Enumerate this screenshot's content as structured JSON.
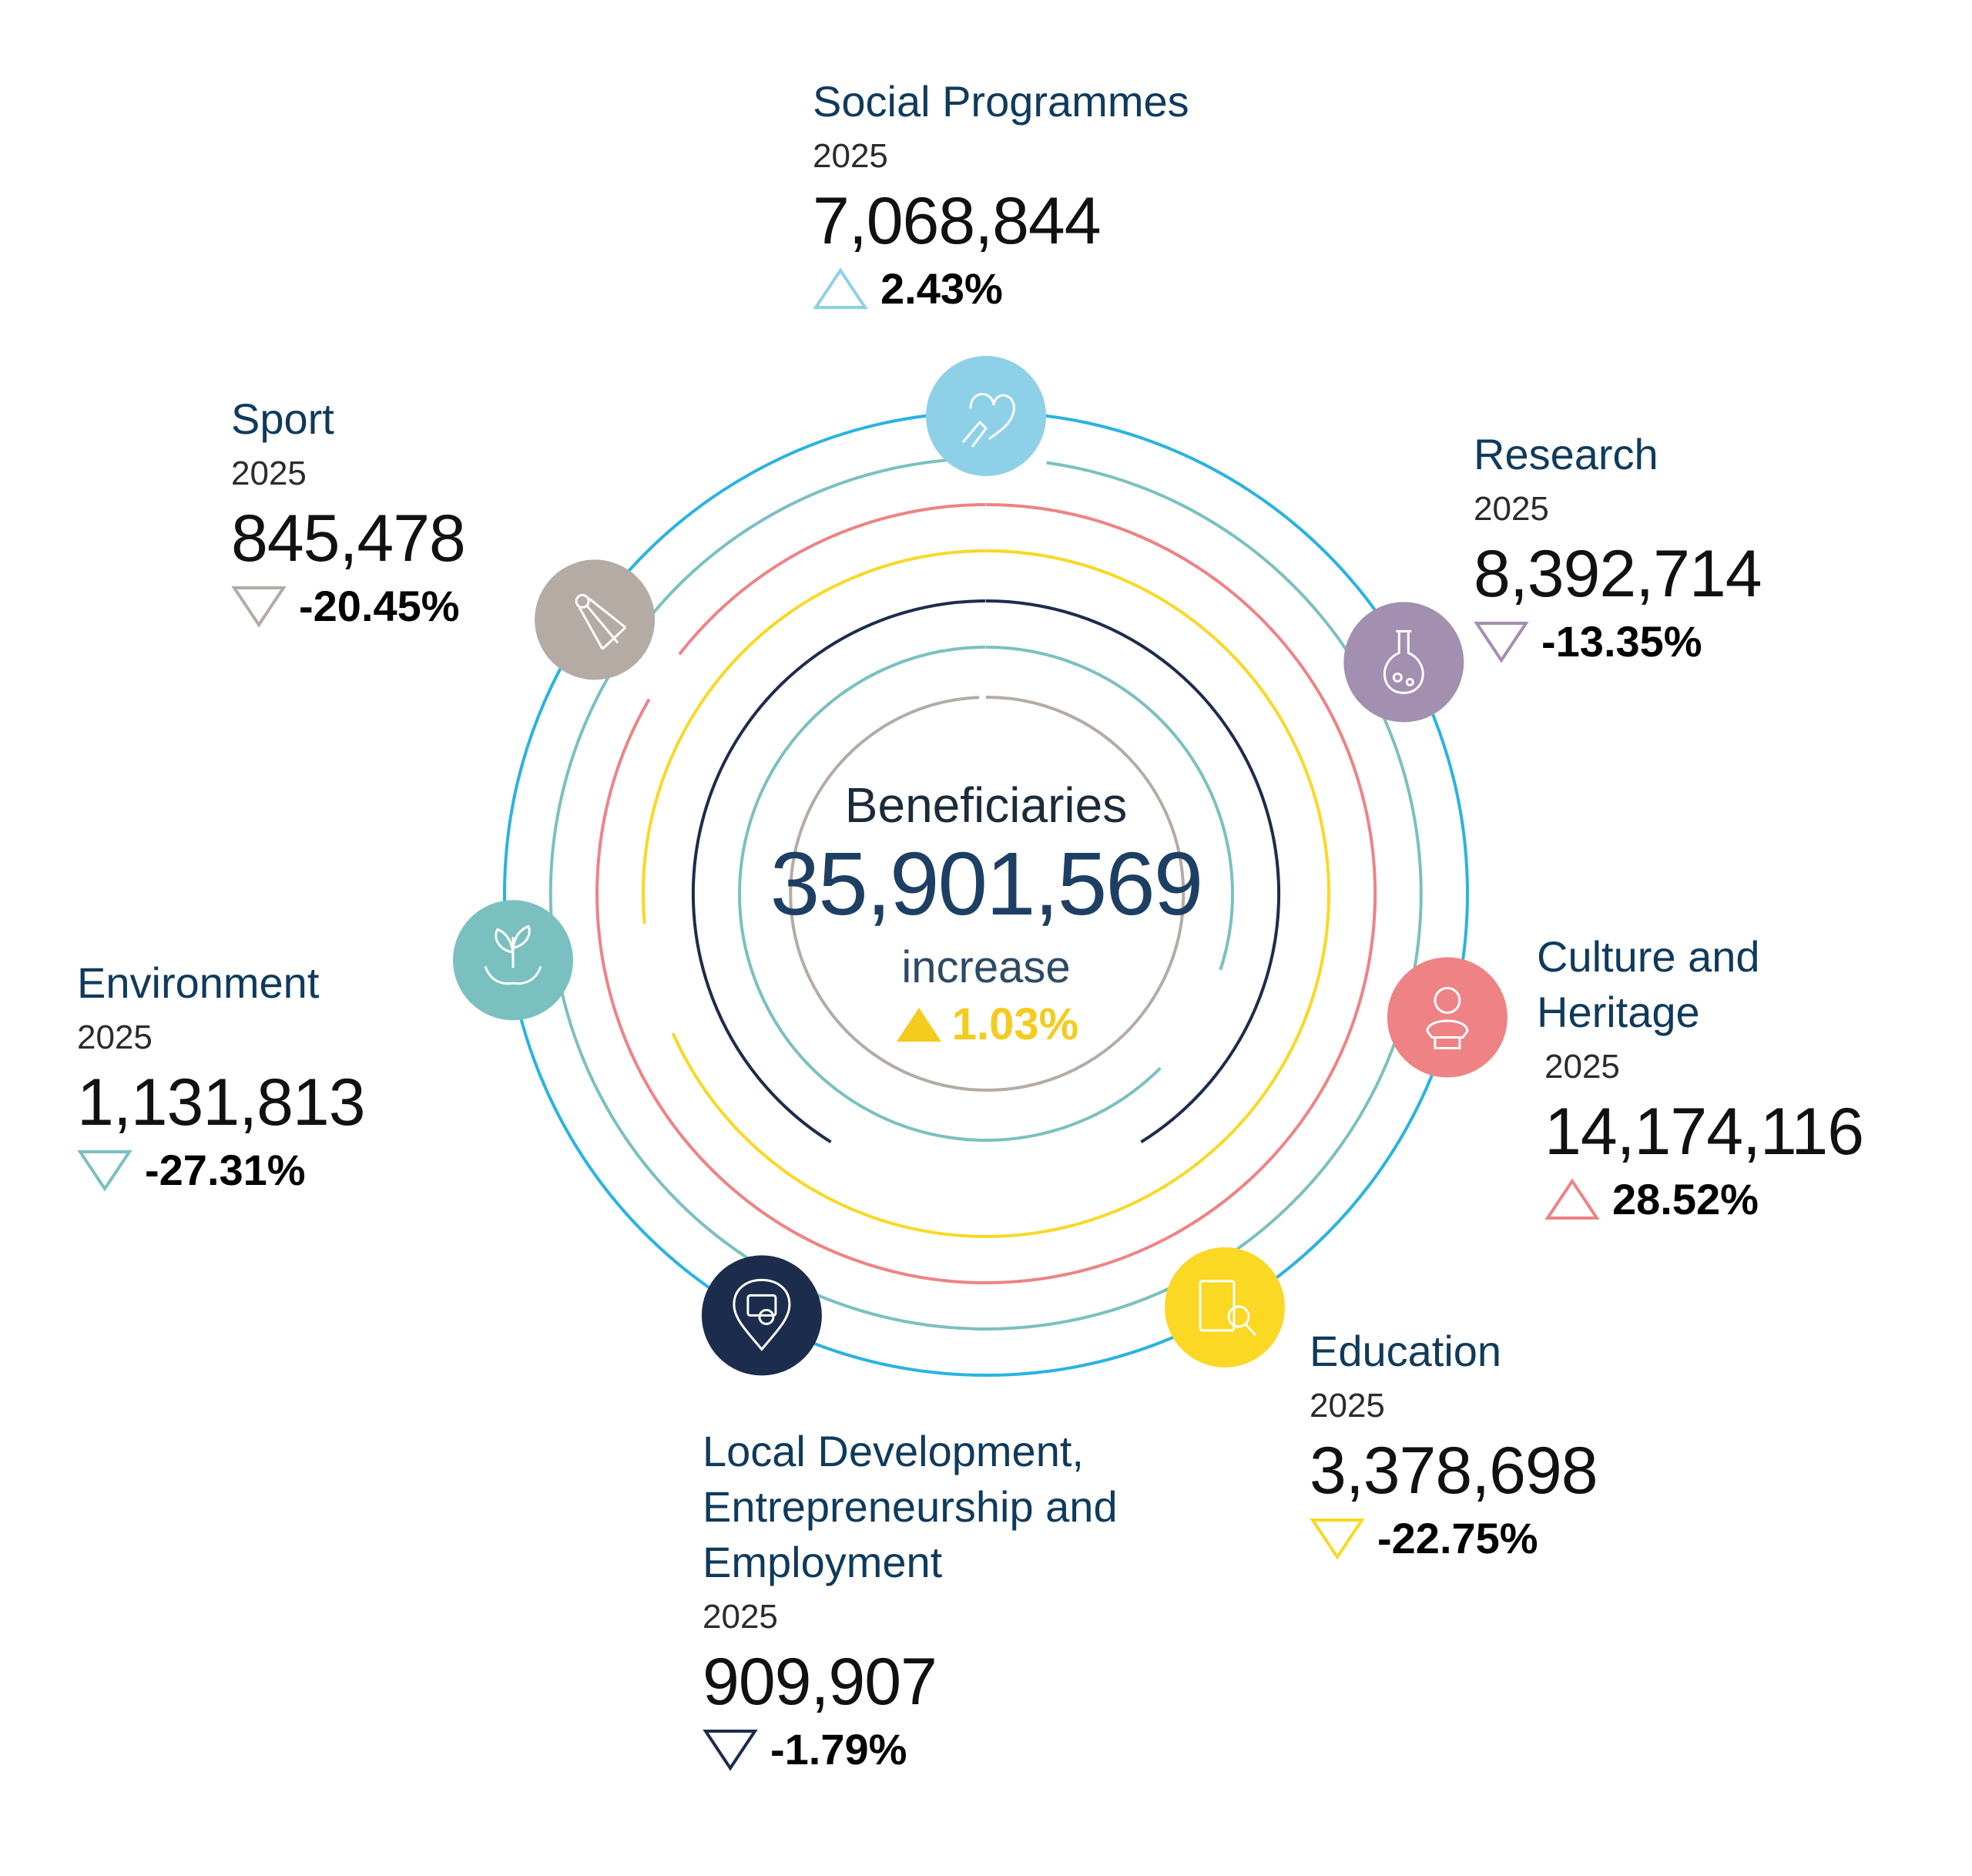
{
  "chart_data": {
    "type": "ring-infographic",
    "title": "Beneficiaries",
    "total": "35,901,569",
    "total_change_label": "increase",
    "total_change": "1.03%",
    "total_change_direction": "up",
    "categories": [
      {
        "name": "Social Programmes",
        "year": "2025",
        "value": "7,068,844",
        "change": "2.43%",
        "direction": "up",
        "color": "#8ed0e8",
        "icon": "heart-hand-icon"
      },
      {
        "name": "Research",
        "year": "2025",
        "value": "8,392,714",
        "change": "-13.35%",
        "direction": "down",
        "color": "#a38fb0",
        "icon": "flask-icon"
      },
      {
        "name": "Culture and Heritage",
        "year": "2025",
        "value": "14,174,116",
        "change": "28.52%",
        "direction": "up",
        "color": "#ee8285",
        "icon": "bust-statue-icon"
      },
      {
        "name": "Education",
        "year": "2025",
        "value": "3,378,698",
        "change": "-22.75%",
        "direction": "down",
        "color": "#fad824",
        "icon": "book-search-icon"
      },
      {
        "name": "Local Development, Entrepreneurship and Employment",
        "year": "2025",
        "value": "909,907",
        "change": "-1.79%",
        "direction": "down",
        "color": "#1c2c4c",
        "icon": "location-briefcase-icon"
      },
      {
        "name": "Environment",
        "year": "2025",
        "value": "1,131,813",
        "change": "-27.31%",
        "direction": "down",
        "color": "#7bc0c0",
        "icon": "plant-hands-icon"
      },
      {
        "name": "Sport",
        "year": "2025",
        "value": "845,478",
        "change": "-20.45%",
        "direction": "down",
        "color": "#b4aba5",
        "icon": "shuttlecock-icon"
      }
    ]
  },
  "colors": {
    "outer_ring": "#29b3e0",
    "heading": "#0f3a5c",
    "center_value": "#1d3f63",
    "increase": "#f4cb1f"
  }
}
